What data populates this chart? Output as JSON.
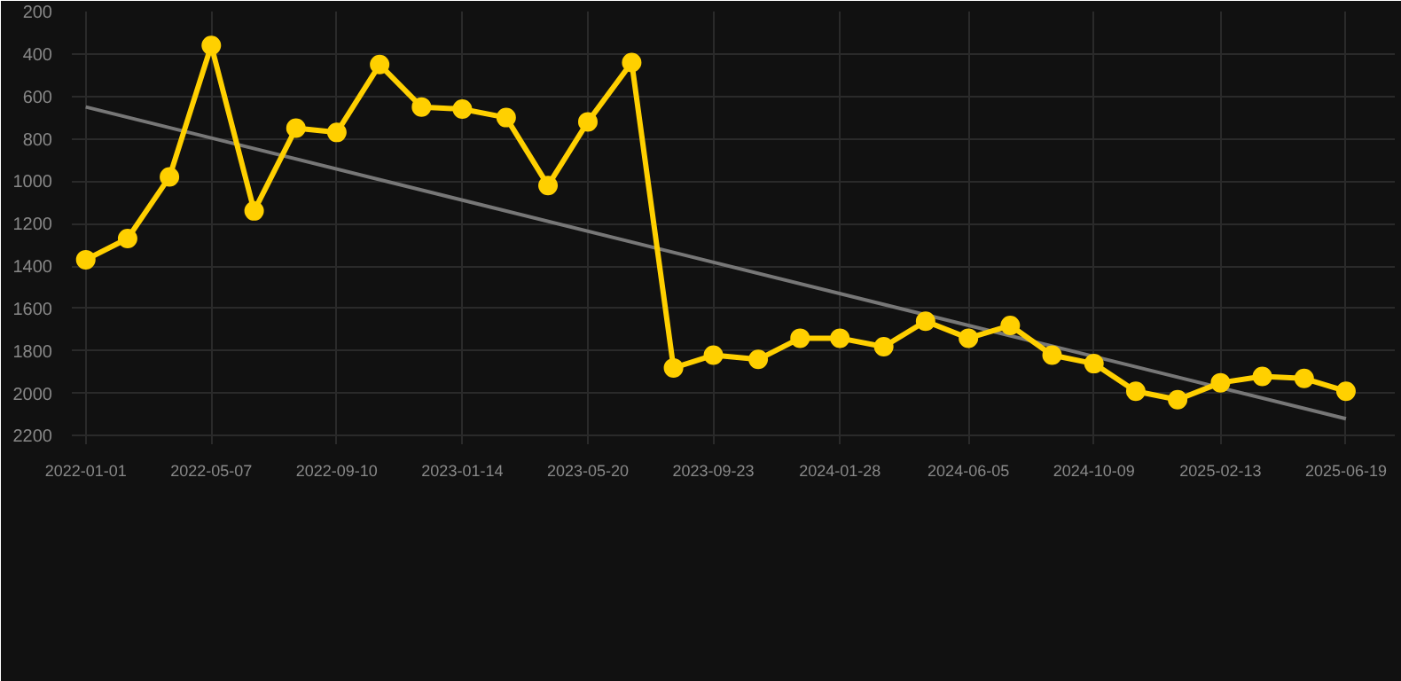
{
  "chart_data": {
    "type": "line",
    "x": [
      "2022-01-01",
      "2022-02-12",
      "2022-03-26",
      "2022-05-07",
      "2022-06-19",
      "2022-07-31",
      "2022-09-10",
      "2022-10-23",
      "2022-12-04",
      "2023-01-14",
      "2023-02-27",
      "2023-04-10",
      "2023-05-20",
      "2023-07-03",
      "2023-08-14",
      "2023-09-23",
      "2023-11-07",
      "2023-12-19",
      "2024-01-28",
      "2024-03-12",
      "2024-04-23",
      "2024-06-05",
      "2024-07-17",
      "2024-08-28",
      "2024-10-09",
      "2024-11-20",
      "2025-01-01",
      "2025-02-13",
      "2025-03-27",
      "2025-05-08",
      "2025-06-19"
    ],
    "series": [
      {
        "color": "#ffd000",
        "values": [
          1370,
          1270,
          980,
          360,
          1140,
          750,
          770,
          450,
          650,
          660,
          700,
          1020,
          720,
          440,
          1880,
          1820,
          1840,
          1740,
          1740,
          1780,
          1660,
          1740,
          1680,
          1820,
          1860,
          1990,
          2030,
          1950,
          1920,
          1930,
          1990
        ]
      },
      {
        "type": "line",
        "color": "#777777",
        "marker": "none",
        "x": [
          "2022-01-01",
          "2025-06-19"
        ],
        "values": [
          650,
          2120
        ]
      }
    ],
    "ylim": [
      2240,
      200
    ],
    "yticks": [
      200,
      400,
      600,
      800,
      1000,
      1200,
      1400,
      1600,
      1800,
      2000,
      2200
    ],
    "xlim": [
      "2021-12-18",
      "2025-08-07"
    ],
    "xticks": [
      "2022-01-01",
      "2022-05-07",
      "2022-09-10",
      "2023-01-14",
      "2023-05-20",
      "2023-09-23",
      "2024-01-28",
      "2024-06-05",
      "2024-10-09",
      "2025-02-13",
      "2025-06-19"
    ],
    "grid": true,
    "marker": "circle",
    "line_style": "solid"
  }
}
